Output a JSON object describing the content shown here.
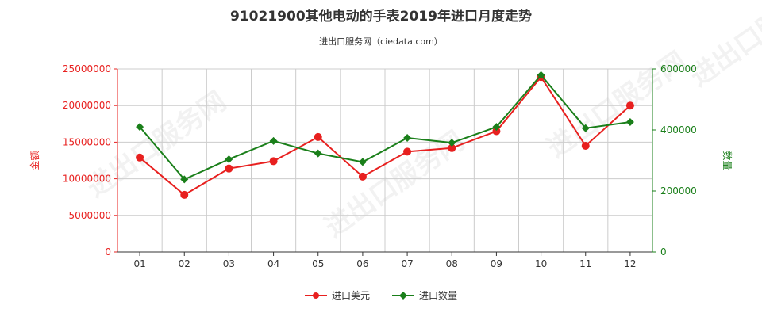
{
  "title": "91021900其他电动的手表2019年进口月度走势",
  "subtitle": "进出口服务网（ciedata.com）",
  "watermark": "进出口服务网",
  "colors": {
    "import_value": "#e8201f",
    "import_quantity": "#1a7f1a",
    "grid": "#cccccc",
    "axis": "#333333"
  },
  "chart_data": {
    "type": "line",
    "categories": [
      "01",
      "02",
      "03",
      "04",
      "05",
      "06",
      "07",
      "08",
      "09",
      "10",
      "11",
      "12"
    ],
    "series": [
      {
        "name": "进口美元",
        "axis": "left",
        "marker": "circle",
        "values": [
          12900000,
          7800000,
          11400000,
          12400000,
          15700000,
          10300000,
          13700000,
          14200000,
          16500000,
          23900000,
          14500000,
          20000000
        ]
      },
      {
        "name": "进口数量",
        "axis": "right",
        "marker": "diamond",
        "values": [
          410000,
          238000,
          304000,
          364000,
          323000,
          295000,
          374000,
          358000,
          410000,
          580000,
          406000,
          426000
        ]
      }
    ],
    "y_left": {
      "label": "金额",
      "min": 0,
      "max": 25000000,
      "ticks": [
        "0",
        "5000000",
        "10000000",
        "15000000",
        "20000000",
        "25000000"
      ],
      "tick_values": [
        0,
        5000000,
        10000000,
        15000000,
        20000000,
        25000000
      ]
    },
    "y_right": {
      "label": "数量",
      "min": 0,
      "max": 600000,
      "ticks": [
        "0",
        "200000",
        "400000",
        "600000"
      ],
      "tick_values": [
        0,
        200000,
        400000,
        600000
      ]
    },
    "grid": true,
    "legend_position": "bottom"
  }
}
